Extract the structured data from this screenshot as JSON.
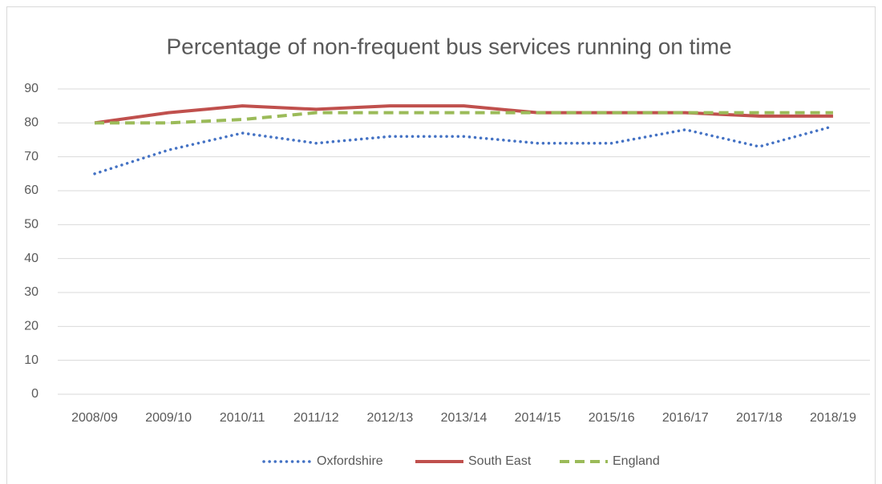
{
  "chart_data": {
    "type": "line",
    "title": "Percentage of non-frequent bus services running on time",
    "categories": [
      "2008/09",
      "2009/10",
      "2010/11",
      "2011/12",
      "2012/13",
      "2013/14",
      "2014/15",
      "2015/16",
      "2016/17",
      "2017/18",
      "2018/19"
    ],
    "series": [
      {
        "name": "Oxfordshire",
        "color": "#4472c4",
        "style": "dotted",
        "values": [
          65,
          72,
          77,
          74,
          76,
          76,
          74,
          74,
          78,
          73,
          79
        ]
      },
      {
        "name": "South East",
        "color": "#c0504d",
        "style": "solid",
        "values": [
          80,
          83,
          85,
          84,
          85,
          85,
          83,
          83,
          83,
          82,
          82
        ]
      },
      {
        "name": "England",
        "color": "#9bbb59",
        "style": "dashed",
        "values": [
          80,
          80,
          81,
          83,
          83,
          83,
          83,
          83,
          83,
          83,
          83
        ]
      }
    ],
    "ylim": [
      0,
      90
    ],
    "yticks": [
      0,
      10,
      20,
      30,
      40,
      50,
      60,
      70,
      80,
      90
    ],
    "grid": true,
    "legend": "bottom"
  }
}
